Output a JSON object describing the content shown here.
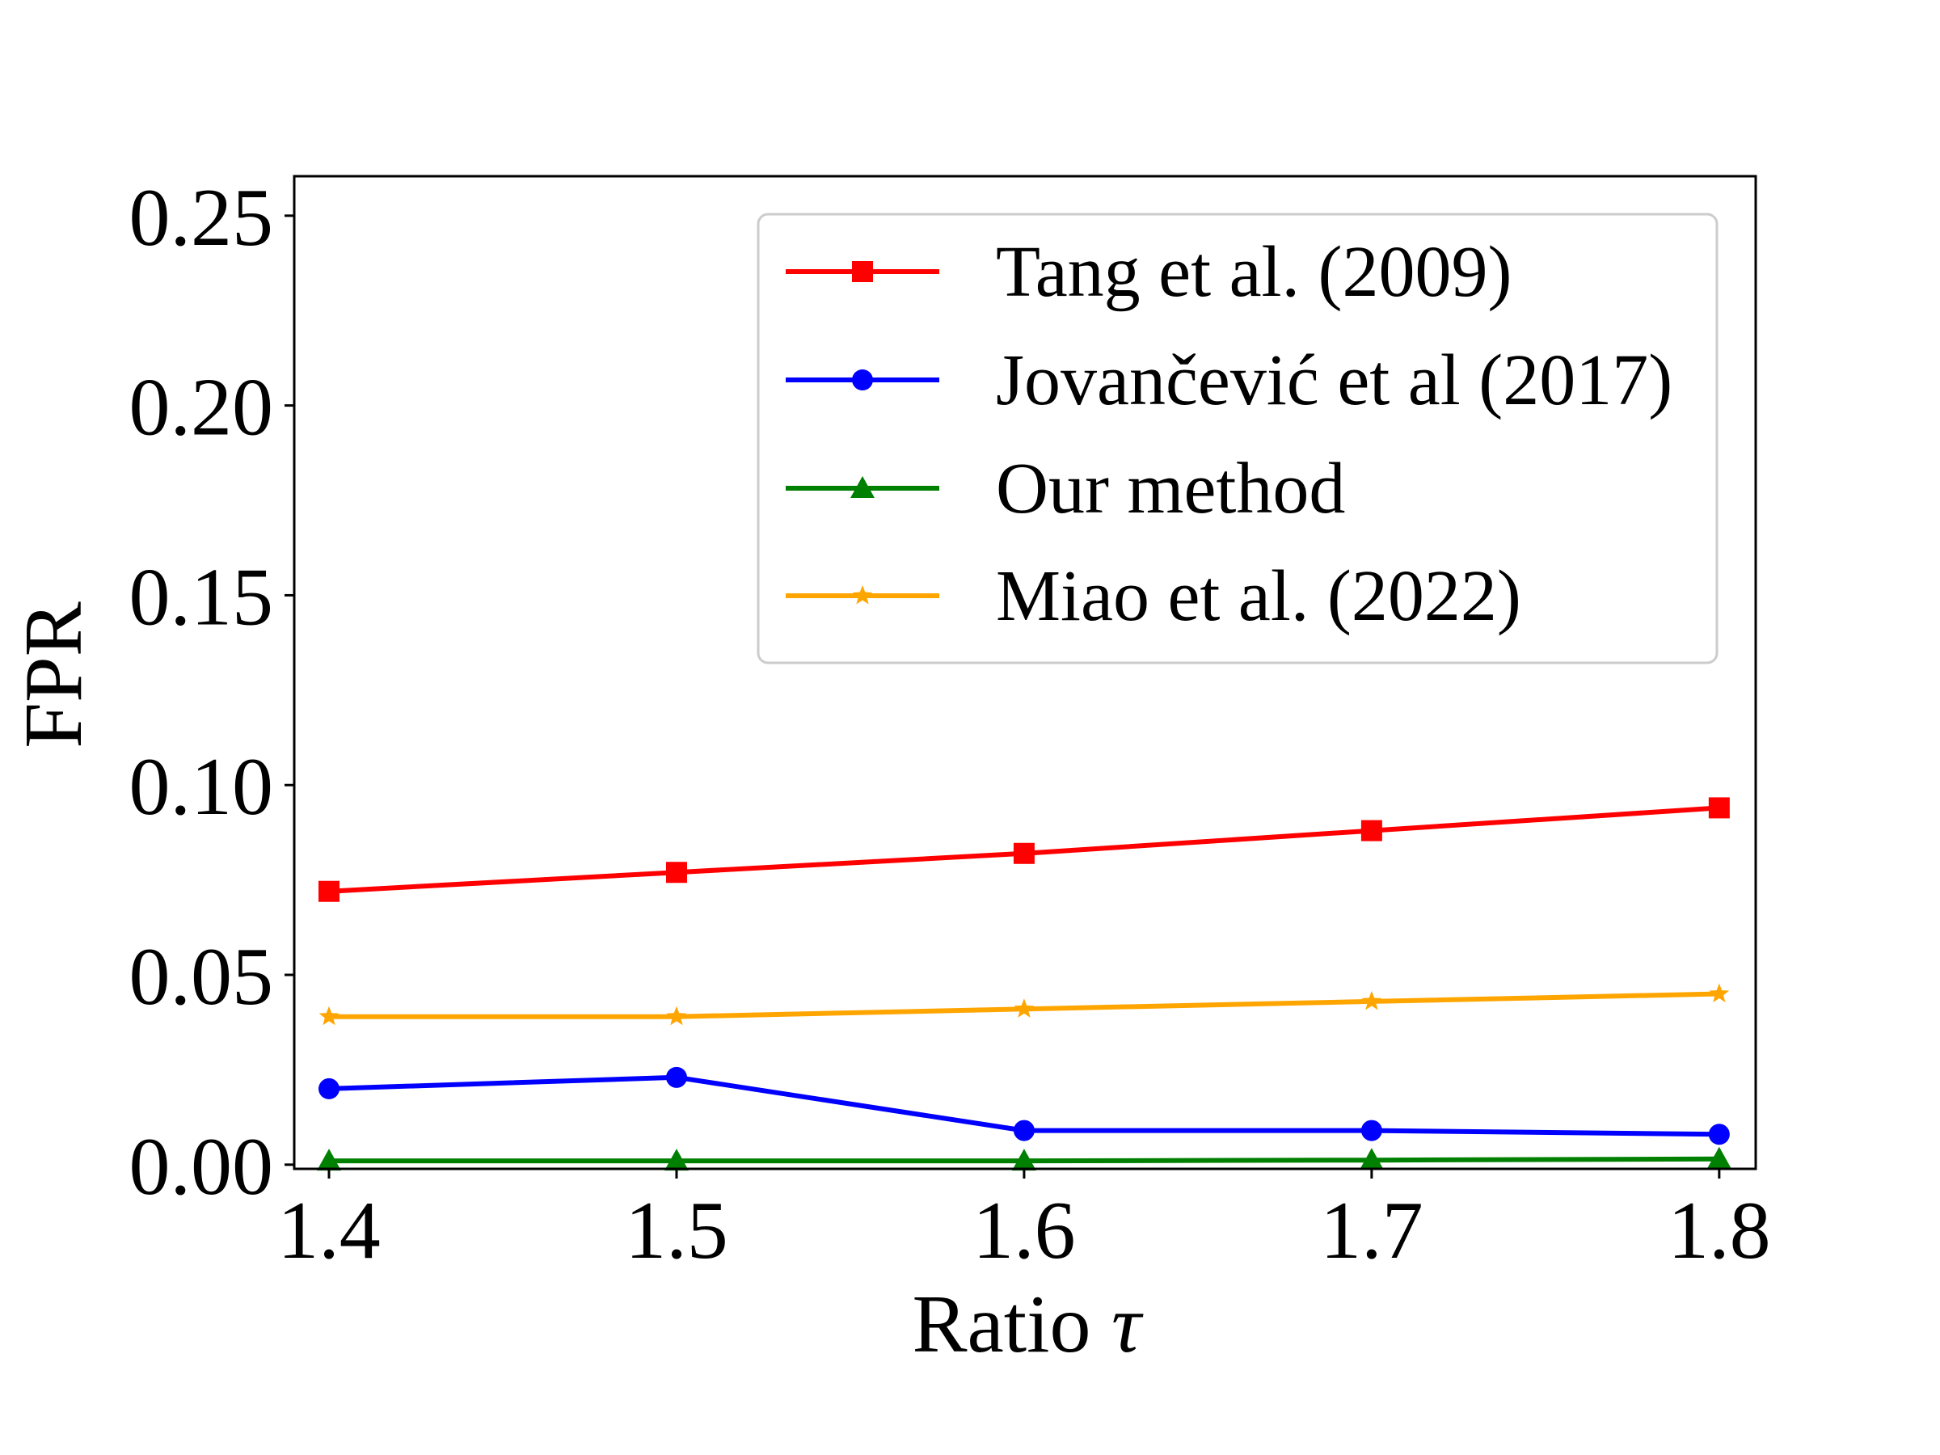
{
  "chart_data": {
    "type": "line",
    "xlabel": "Ratio",
    "xlabel_symbol": "τ",
    "ylabel": "FPR",
    "x": [
      1.4,
      1.5,
      1.6,
      1.7,
      1.8
    ],
    "xlim": [
      1.39,
      1.8105
    ],
    "ylim": [
      -0.0011,
      0.2604
    ],
    "x_ticks": [
      "1.4",
      "1.5",
      "1.6",
      "1.7",
      "1.8"
    ],
    "x_tick_values": [
      1.4,
      1.5,
      1.6,
      1.7,
      1.8
    ],
    "y_ticks": [
      "0.00",
      "0.05",
      "0.10",
      "0.15",
      "0.20",
      "0.25"
    ],
    "y_tick_values": [
      0.0,
      0.05,
      0.1,
      0.15,
      0.2,
      0.25
    ],
    "grid": false,
    "legend_position": "top-right",
    "series": [
      {
        "name": "Tang et al. (2009)",
        "color": "#ff0000",
        "marker": "square",
        "values": [
          0.072,
          0.077,
          0.082,
          0.088,
          0.094
        ]
      },
      {
        "name": "Jovančević et al (2017)",
        "color": "#0000ff",
        "marker": "circle",
        "values": [
          0.02,
          0.023,
          0.009,
          0.009,
          0.008
        ]
      },
      {
        "name": "Our method",
        "color": "#008000",
        "marker": "triangle",
        "values": [
          0.001,
          0.001,
          0.001,
          0.0012,
          0.0015
        ]
      },
      {
        "name": "Miao et al. (2022)",
        "color": "#ffa500",
        "marker": "star",
        "values": [
          0.039,
          0.039,
          0.041,
          0.043,
          0.045
        ]
      }
    ]
  }
}
